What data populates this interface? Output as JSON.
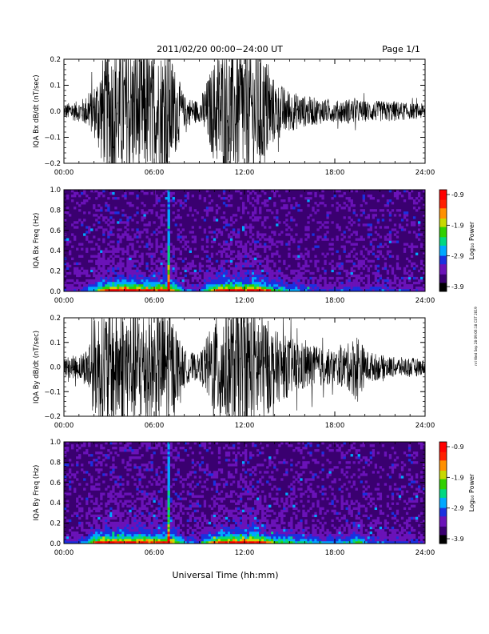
{
  "header": {
    "title": "2011/02/20  00:00−24:00 UT",
    "page": "Page 1/1"
  },
  "footer": {
    "xlabel": "Universal Time (hh:mm)",
    "stamp": "nri Wed Sep 28 09:06:18 CST 2019"
  },
  "time_ticks": [
    "00:00",
    "06:00",
    "12:00",
    "18:00",
    "24:00"
  ],
  "colorscale": {
    "label": "Log₁₀ Power",
    "ticks": [
      "-0.9",
      "-1.9",
      "-2.9",
      "-3.9"
    ],
    "colors": [
      "#000000",
      "#3a0070",
      "#6a12b8",
      "#1a30e0",
      "#00a8ff",
      "#00d880",
      "#30d000",
      "#c8d800",
      "#ff9000",
      "#ff2000",
      "#ff0000"
    ]
  },
  "chart_data": [
    {
      "type": "line",
      "id": "bx_wave",
      "ylabel": "IQA Bx dB/dt (nT/sec)",
      "ylim": [
        -0.2,
        0.2
      ],
      "yticks": [
        "0.2",
        "0.1",
        "0.0",
        "−0.1",
        "−0.2"
      ],
      "xlim": [
        0,
        24
      ],
      "envelope_x": [
        0,
        1,
        1.5,
        2,
        2.5,
        3,
        3.5,
        4,
        5,
        5.5,
        6,
        6.5,
        7,
        7.5,
        8,
        9,
        10,
        10.5,
        11,
        12,
        13,
        13.5,
        14,
        15,
        16,
        17,
        18,
        19,
        20,
        21,
        22,
        23,
        24
      ],
      "envelope_y": [
        0.03,
        0.04,
        0.06,
        0.1,
        0.2,
        0.25,
        0.25,
        0.25,
        0.25,
        0.25,
        0.2,
        0.25,
        0.25,
        0.15,
        0.06,
        0.04,
        0.2,
        0.25,
        0.25,
        0.25,
        0.25,
        0.2,
        0.12,
        0.08,
        0.06,
        0.05,
        0.04,
        0.05,
        0.04,
        0.04,
        0.04,
        0.03,
        0.03
      ]
    },
    {
      "type": "heatmap",
      "id": "bx_spec",
      "ylabel": "IQA Bx Freq (Hz)",
      "ylim": [
        0.0,
        1.0
      ],
      "yticks": [
        "1.0",
        "0.8",
        "0.6",
        "0.4",
        "0.2",
        "0.0"
      ],
      "xlim": [
        0,
        24
      ],
      "zlim": [
        -3.9,
        -0.9
      ]
    },
    {
      "type": "line",
      "id": "by_wave",
      "ylabel": "IQA By dB/dt (nT/sec)",
      "ylim": [
        -0.2,
        0.2
      ],
      "yticks": [
        "0.2",
        "0.1",
        "0.0",
        "−0.1",
        "−0.2"
      ],
      "xlim": [
        0,
        24
      ],
      "envelope_x": [
        0,
        1,
        1.5,
        2,
        2.5,
        3,
        3.5,
        4,
        5,
        5.5,
        6,
        6.5,
        7,
        7.5,
        8,
        9,
        10,
        10.5,
        11,
        12,
        13,
        13.5,
        14,
        15,
        16,
        17,
        18,
        19,
        19.5,
        20,
        21,
        22,
        23,
        24
      ],
      "envelope_y": [
        0.04,
        0.05,
        0.08,
        0.2,
        0.25,
        0.25,
        0.25,
        0.25,
        0.25,
        0.25,
        0.2,
        0.25,
        0.25,
        0.15,
        0.07,
        0.05,
        0.2,
        0.25,
        0.25,
        0.25,
        0.25,
        0.2,
        0.15,
        0.12,
        0.1,
        0.08,
        0.07,
        0.1,
        0.15,
        0.07,
        0.05,
        0.04,
        0.04,
        0.03
      ]
    },
    {
      "type": "heatmap",
      "id": "by_spec",
      "ylabel": "IQA By Freq (Hz)",
      "ylim": [
        0.0,
        1.0
      ],
      "yticks": [
        "1.0",
        "0.8",
        "0.6",
        "0.4",
        "0.2",
        "0.0"
      ],
      "xlim": [
        0,
        24
      ],
      "zlim": [
        -3.9,
        -0.9
      ]
    }
  ]
}
